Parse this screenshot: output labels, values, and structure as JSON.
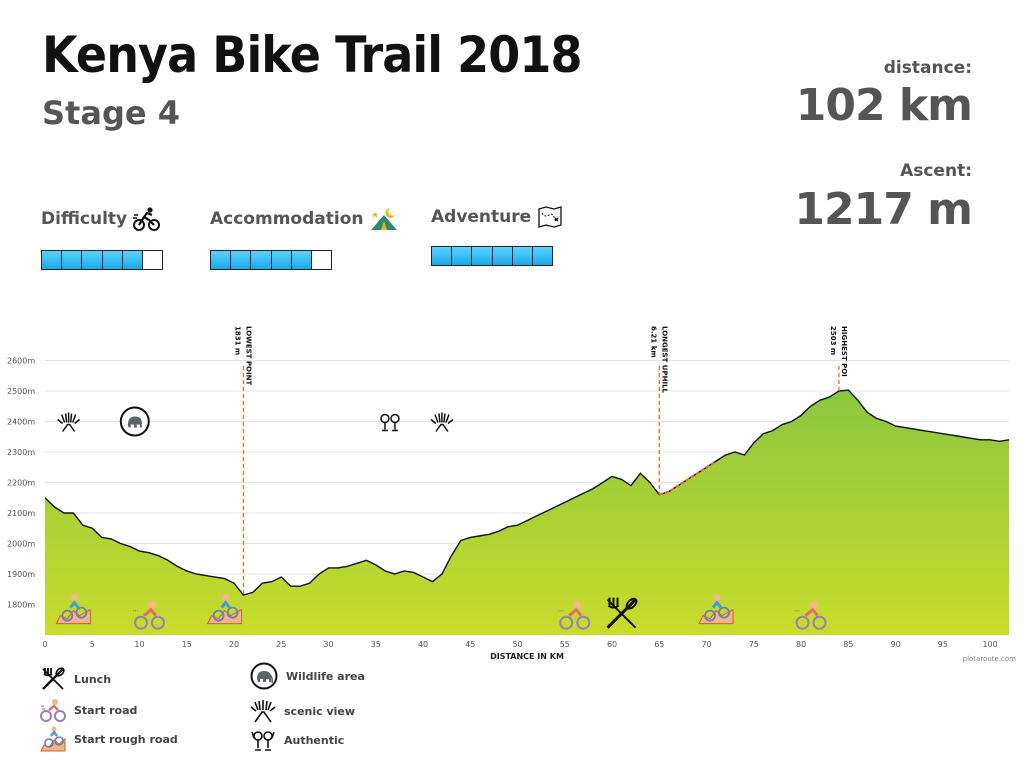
{
  "header": {
    "title": "Kenya Bike Trail 2018",
    "subtitle": "Stage 4"
  },
  "stats": {
    "distance_label": "distance:",
    "distance_value": "102 km",
    "ascent_label": "Ascent:",
    "ascent_value": "1217 m"
  },
  "ratings": [
    {
      "label": "Difficulty",
      "icon": "cyclist-icon",
      "level": 5,
      "max": 6
    },
    {
      "label": "Accommodation",
      "icon": "tent-icon",
      "level": 5,
      "max": 6
    },
    {
      "label": "Adventure",
      "icon": "treasure-map-icon",
      "level": 6,
      "max": 6
    }
  ],
  "legend": {
    "lunch": "Lunch",
    "start_road": "Start road",
    "start_rough_road": "Start rough road",
    "wildlife": "Wildlife area",
    "scenic": "scenic view",
    "authentic": "Authentic"
  },
  "credit": "plotaroute.com",
  "chart_data": {
    "type": "area",
    "xlabel": "DISTANCE IN KM",
    "ylabel": "",
    "xlim": [
      0,
      102
    ],
    "ylim": [
      1700,
      2700
    ],
    "x_ticks": [
      0,
      5,
      10,
      15,
      20,
      25,
      30,
      35,
      40,
      45,
      50,
      55,
      60,
      65,
      70,
      75,
      80,
      85,
      90,
      95,
      100
    ],
    "y_ticks": [
      1800,
      1900,
      2000,
      2100,
      2200,
      2300,
      2400,
      2500,
      2600
    ],
    "y_tick_suffix": "m",
    "grid": true,
    "x": [
      0,
      1,
      2,
      3,
      4,
      5,
      6,
      7,
      8,
      9,
      10,
      11,
      12,
      13,
      14,
      15,
      16,
      17,
      18,
      19,
      20,
      21,
      22,
      23,
      24,
      25,
      26,
      27,
      28,
      29,
      30,
      31,
      32,
      33,
      34,
      35,
      36,
      37,
      38,
      39,
      40,
      41,
      42,
      43,
      44,
      45,
      46,
      47,
      48,
      49,
      50,
      51,
      52,
      53,
      54,
      55,
      56,
      57,
      58,
      59,
      60,
      61,
      62,
      63,
      64,
      65,
      66,
      67,
      68,
      69,
      70,
      71,
      72,
      73,
      74,
      75,
      76,
      77,
      78,
      79,
      80,
      81,
      82,
      83,
      84,
      85,
      86,
      87,
      88,
      89,
      90,
      91,
      92,
      93,
      94,
      95,
      96,
      97,
      98,
      99,
      100,
      101,
      102
    ],
    "y": [
      2150,
      2120,
      2100,
      2100,
      2060,
      2050,
      2020,
      2015,
      2000,
      1990,
      1975,
      1970,
      1960,
      1945,
      1925,
      1910,
      1900,
      1895,
      1890,
      1885,
      1870,
      1831,
      1840,
      1870,
      1875,
      1890,
      1860,
      1860,
      1870,
      1900,
      1920,
      1920,
      1925,
      1935,
      1945,
      1930,
      1910,
      1900,
      1910,
      1905,
      1890,
      1875,
      1900,
      1960,
      2010,
      2020,
      2025,
      2030,
      2040,
      2055,
      2060,
      2075,
      2090,
      2105,
      2120,
      2135,
      2150,
      2165,
      2180,
      2200,
      2220,
      2210,
      2190,
      2230,
      2200,
      2160,
      2170,
      2190,
      2210,
      2230,
      2250,
      2270,
      2290,
      2300,
      2290,
      2330,
      2360,
      2370,
      2390,
      2400,
      2420,
      2450,
      2470,
      2480,
      2500,
      2503,
      2470,
      2430,
      2410,
      2400,
      2385,
      2380,
      2375,
      2370,
      2365,
      2360,
      2355,
      2350,
      2345,
      2340,
      2340,
      2335,
      2340
    ],
    "annotations": [
      {
        "label": "LOWEST POINT",
        "value": "1831 m",
        "x": 21
      },
      {
        "label": "LONGEST UPHILL",
        "value": "6.21 km",
        "x": 65
      },
      {
        "label": "HIGHEST POI",
        "value": "2503 m",
        "x": 84
      }
    ],
    "markers": [
      {
        "icon": "scenic-view-icon",
        "x": 2.5,
        "y": 2400
      },
      {
        "icon": "wildlife-area-icon",
        "x": 9.5,
        "y": 2400
      },
      {
        "icon": "authentic-icon",
        "x": 36.5,
        "y": 2400
      },
      {
        "icon": "scenic-view-icon",
        "x": 42,
        "y": 2400
      },
      {
        "icon": "start-rough-road-icon",
        "x": 3,
        "y": 1770
      },
      {
        "icon": "start-road-icon",
        "x": 11,
        "y": 1760
      },
      {
        "icon": "start-rough-road-icon",
        "x": 19,
        "y": 1770
      },
      {
        "icon": "start-road-icon",
        "x": 56,
        "y": 1760
      },
      {
        "icon": "lunch-icon",
        "x": 61,
        "y": 1770
      },
      {
        "icon": "start-rough-road-icon",
        "x": 71,
        "y": 1770
      },
      {
        "icon": "start-road-icon",
        "x": 81,
        "y": 1760
      }
    ]
  },
  "colors": {
    "area_top": "#8cc63f",
    "area_bottom": "#c8dc2c",
    "line": "#111111",
    "annotation": "#ee6a2c",
    "rating_on": "#1aa8e8"
  }
}
